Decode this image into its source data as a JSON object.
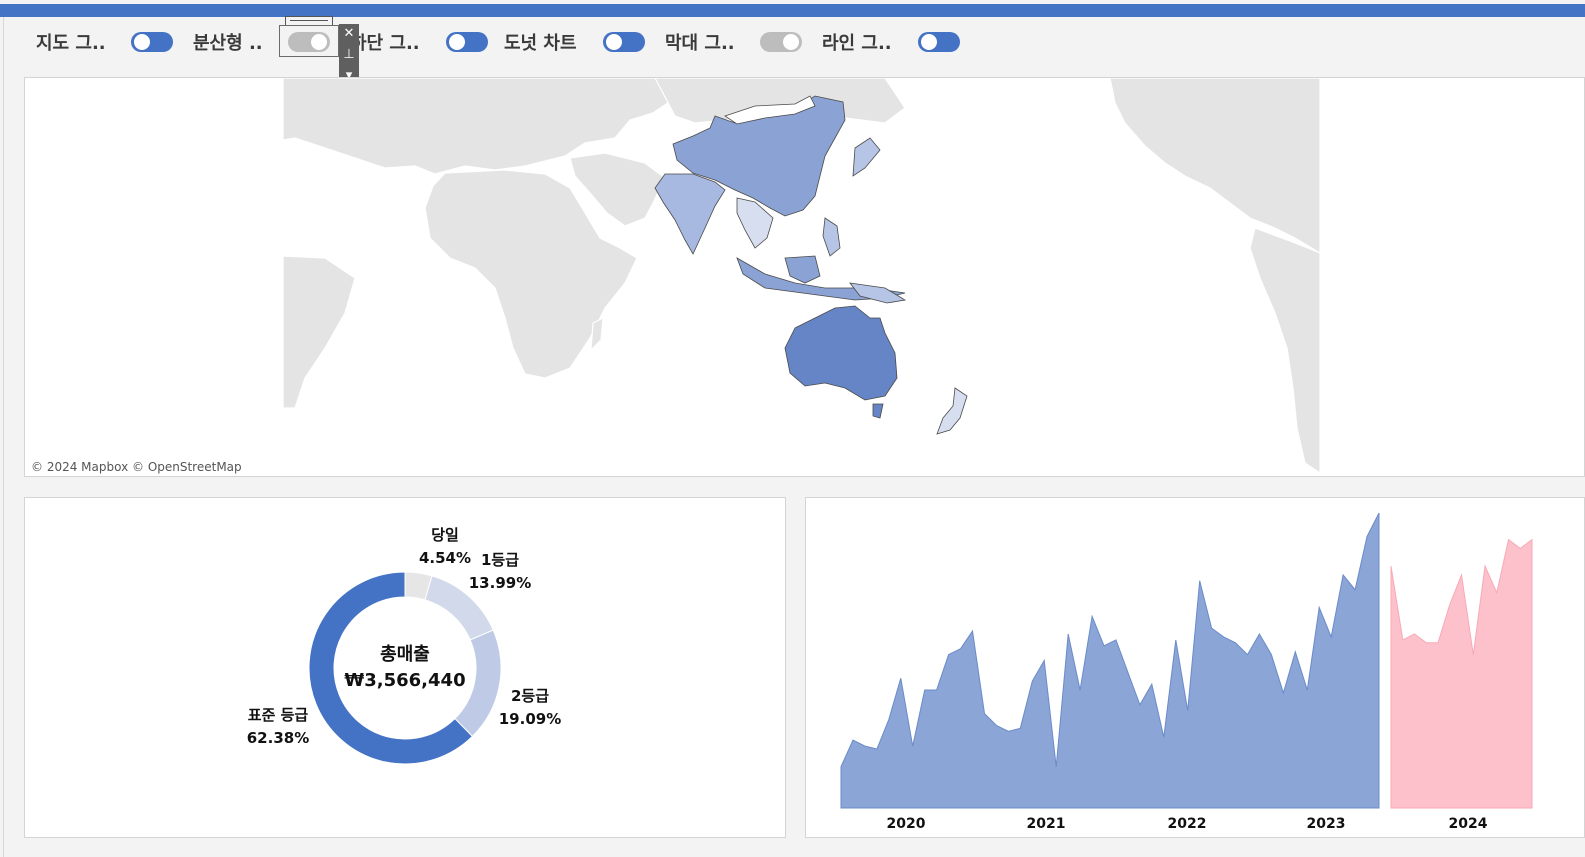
{
  "toolbar": {
    "toggles": [
      {
        "label": "지도 그..",
        "on": true
      },
      {
        "label": "분산형 ..",
        "on": false
      },
      {
        "label": "하단 그..",
        "on": true
      },
      {
        "label": "도넛 차트",
        "on": true
      },
      {
        "label": "막대 그..",
        "on": false
      },
      {
        "label": "라인 그..",
        "on": true
      }
    ]
  },
  "map": {
    "attribution": "© 2024 Mapbox © OpenStreetMap",
    "land_color": "#e4e4e4",
    "highlight_colors": [
      "#6585c6",
      "#8aa3d4",
      "#b6c5e6",
      "#d7def0"
    ]
  },
  "donut": {
    "center_title": "총매출",
    "center_value": "₩3,566,440",
    "segments": [
      {
        "name": "당일",
        "pct_label": "4.54%",
        "value": 4.54,
        "color": "#e6e6e6"
      },
      {
        "name": "1등급",
        "pct_label": "13.99%",
        "value": 13.99,
        "color": "#d1d9ea"
      },
      {
        "name": "2등급",
        "pct_label": "19.09%",
        "value": 19.09,
        "color": "#bfcbe6"
      },
      {
        "name": "표준 등급",
        "pct_label": "62.38%",
        "value": 62.38,
        "color": "#4472c4"
      }
    ]
  },
  "chart_data": {
    "type": "area",
    "x_ticks": [
      "2020",
      "2021",
      "2022",
      "2023",
      "2024"
    ],
    "series": [
      {
        "color": "#8aa5d6",
        "values": [
          14,
          23,
          21,
          20,
          30,
          44,
          21,
          40,
          40,
          52,
          54,
          60,
          32,
          28,
          26,
          27,
          43,
          50,
          14,
          59,
          40,
          65,
          55,
          57,
          46,
          35,
          42,
          24,
          57,
          33,
          77,
          61,
          58,
          56,
          52,
          59,
          52,
          39,
          53,
          40,
          68,
          58,
          79,
          74,
          92,
          100
        ]
      },
      {
        "color": "#fcc1cb",
        "values": [
          82,
          57,
          59,
          56,
          56,
          69,
          79,
          52,
          82,
          73,
          91,
          88,
          91
        ]
      }
    ],
    "ylim": [
      0,
      100
    ]
  }
}
